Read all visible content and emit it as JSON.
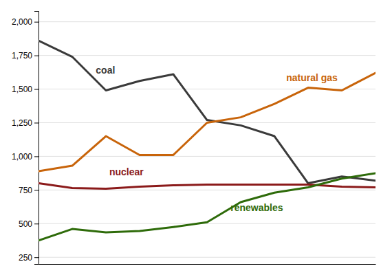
{
  "chart_data": {
    "type": "line",
    "x": [
      0,
      1,
      2,
      3,
      4,
      5,
      6,
      7,
      8,
      9,
      10
    ],
    "xlim": [
      0,
      10
    ],
    "ylim": [
      200,
      2080
    ],
    "yticks": [
      250,
      500,
      750,
      {
        "value": 1000,
        "label": "1,000"
      },
      {
        "value": 1250,
        "label": "1,250"
      },
      {
        "value": 1500,
        "label": "1,500"
      },
      {
        "value": 1750,
        "label": "1,750"
      },
      {
        "value": 2000,
        "label": "2,000"
      }
    ],
    "tick_labels": "y",
    "grid": "y",
    "series": [
      {
        "color": "#3a3a3a",
        "values": [
          1860,
          1740,
          1490,
          1560,
          1610,
          1270,
          1230,
          1150,
          800,
          850,
          820
        ]
      },
      {
        "color": "#c8640a",
        "values": [
          890,
          930,
          1150,
          1010,
          1010,
          1250,
          1290,
          1390,
          1510,
          1490,
          1620
        ]
      },
      {
        "color": "#8b1a1a",
        "values": [
          800,
          765,
          760,
          775,
          785,
          790,
          790,
          790,
          790,
          775,
          770
        ]
      },
      {
        "color": "#2e6b0a",
        "values": [
          375,
          460,
          435,
          445,
          475,
          510,
          660,
          730,
          770,
          835,
          875
        ]
      }
    ],
    "annotations": [
      {
        "text": "coal",
        "x": 1.7,
        "y": 1615,
        "color": "#3a3a3a"
      },
      {
        "text": "natural gas",
        "x": 7.35,
        "y": 1560,
        "color": "#c8640a"
      },
      {
        "text": "nuclear",
        "x": 2.1,
        "y": 860,
        "color": "#8b1a1a"
      },
      {
        "text": "renewables",
        "x": 5.7,
        "y": 595,
        "color": "#2e6b0a"
      }
    ]
  }
}
